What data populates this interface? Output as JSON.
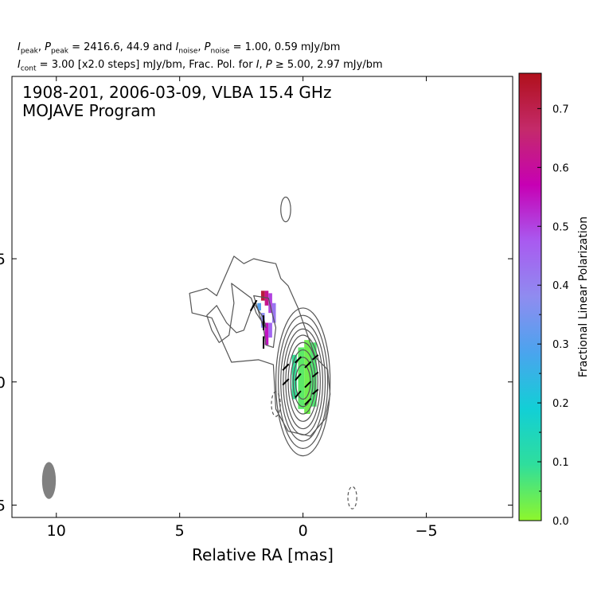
{
  "header": {
    "peak_values": "2416.6, 44.9",
    "noise_values": "1.00, 0.59 mJy/bm",
    "cont_value": "3.00 [x2.0 steps] mJy/bm, Frac. Pol. for",
    "pol_thresholds": "5.00, 2.97 mJy/bm",
    "sym_i": "I",
    "sym_p": "P",
    "sub_peak": "peak",
    "sub_noise": "noise",
    "sub_cont": "cont",
    "eq": "=",
    "and": "and",
    "comma": ",",
    "geq": "≥"
  },
  "chart_data": {
    "type": "contour",
    "title": "1908-201, 2006-03-09, VLBA 15.4 GHz",
    "subtitle": "MOJAVE Program",
    "xlabel": "Relative RA [mas]",
    "ylabel": "",
    "x_ticks": [
      10,
      5,
      0,
      -5
    ],
    "x_tick_labels": [
      "10",
      "5",
      "0",
      "−5"
    ],
    "y_ticks": [
      5,
      0,
      -5
    ],
    "y_tick_labels_visible": [
      "5",
      "0",
      "5"
    ],
    "xlim": [
      11.8,
      -8.5
    ],
    "ylim": [
      -5.5,
      12.4
    ],
    "colorbar": {
      "label": "Fractional Linear Polarization",
      "min": 0.0,
      "max": 0.76,
      "ticks": [
        0.0,
        0.1,
        0.2,
        0.3,
        0.4,
        0.5,
        0.6,
        0.7
      ],
      "tick_labels": [
        "0.0",
        "0.1",
        "0.2",
        "0.3",
        "0.4",
        "0.5",
        "0.6",
        "0.7"
      ],
      "colors": [
        "#8ef62c",
        "#2fde9c",
        "#12cfd6",
        "#4aa4ee",
        "#8f8cf0",
        "#a95af0",
        "#c700b4",
        "#c42a6a",
        "#b0101b"
      ]
    },
    "core": {
      "x": 0.0,
      "y": 0.0
    },
    "contour_levels_mJy": [
      3,
      6,
      12,
      24,
      48,
      96,
      192,
      384,
      768,
      1536
    ],
    "core_contours": [
      {
        "dx": 1.1,
        "dy": 3.0
      },
      {
        "dx": 1.0,
        "dy": 2.7
      },
      {
        "dx": 0.9,
        "dy": 2.4
      },
      {
        "dx": 0.8,
        "dy": 2.15
      },
      {
        "dx": 0.7,
        "dy": 1.9
      },
      {
        "dx": 0.6,
        "dy": 1.6
      },
      {
        "dx": 0.5,
        "dy": 1.3
      },
      {
        "dx": 0.4,
        "dy": 1.0
      },
      {
        "dx": 0.3,
        "dy": 0.7
      }
    ],
    "jet_outer_contour": [
      [
        1.6,
        4.9
      ],
      [
        1.1,
        4.8
      ],
      [
        0.9,
        4.2
      ],
      [
        0.6,
        3.9
      ],
      [
        0.2,
        3.0
      ],
      [
        -0.5,
        1.0
      ],
      [
        -1.0,
        0.5
      ],
      [
        -1.1,
        -0.5
      ],
      [
        -0.9,
        -1.5
      ],
      [
        -0.3,
        -2.2
      ],
      [
        0.6,
        -2.0
      ],
      [
        1.1,
        -1.1
      ],
      [
        1.2,
        0.7
      ],
      [
        1.8,
        0.9
      ],
      [
        2.9,
        0.8
      ],
      [
        3.7,
        2.6
      ],
      [
        4.5,
        2.8
      ],
      [
        4.6,
        3.6
      ],
      [
        3.9,
        3.8
      ],
      [
        3.5,
        3.5
      ],
      [
        2.8,
        5.1
      ],
      [
        2.4,
        4.8
      ],
      [
        2.0,
        5.0
      ]
    ],
    "jet_inner_contour": [
      [
        2.9,
        4.0
      ],
      [
        2.1,
        3.4
      ],
      [
        1.9,
        2.8
      ],
      [
        1.5,
        2.2
      ],
      [
        1.6,
        2.6
      ],
      [
        2.0,
        3.2
      ],
      [
        2.4,
        2.1
      ],
      [
        2.7,
        2.0
      ],
      [
        3.1,
        2.4
      ],
      [
        3.5,
        3.1
      ],
      [
        3.9,
        2.7
      ],
      [
        3.7,
        2.1
      ],
      [
        3.4,
        1.6
      ],
      [
        3.0,
        1.9
      ],
      [
        2.8,
        3.2
      ]
    ],
    "jet_contour_2": [
      [
        2.0,
        3.5
      ],
      [
        1.6,
        2.2
      ],
      [
        1.5,
        1.5
      ],
      [
        1.2,
        1.4
      ],
      [
        1.1,
        2.2
      ],
      [
        1.4,
        3.4
      ],
      [
        2.0,
        3.5
      ]
    ],
    "isolated_contours": [
      {
        "x": 0.7,
        "y": 7.0,
        "rx": 0.2,
        "ry": 0.5,
        "dashed": false
      },
      {
        "x": 1.1,
        "y": -0.9,
        "rx": 0.18,
        "ry": 0.5,
        "dashed": true
      },
      {
        "x": -2.0,
        "y": -4.7,
        "rx": 0.18,
        "ry": 0.45,
        "dashed": true
      }
    ],
    "beam": {
      "x": 10.3,
      "y": -4.0,
      "rx": 0.28,
      "ry": 0.75
    },
    "frac_pol_pixels": [
      {
        "x": 1.7,
        "y": 3.3,
        "w": 0.15,
        "h": 0.4,
        "fp": 0.72
      },
      {
        "x": 1.55,
        "y": 3.1,
        "w": 0.15,
        "h": 0.6,
        "fp": 0.62
      },
      {
        "x": 1.4,
        "y": 2.8,
        "w": 0.15,
        "h": 0.8,
        "fp": 0.5
      },
      {
        "x": 1.25,
        "y": 2.4,
        "w": 0.15,
        "h": 0.8,
        "fp": 0.42
      },
      {
        "x": 1.85,
        "y": 2.9,
        "w": 0.15,
        "h": 0.3,
        "fp": 0.3
      },
      {
        "x": 1.7,
        "y": 2.2,
        "w": 0.15,
        "h": 0.6,
        "fp": 0.38
      },
      {
        "x": 1.55,
        "y": 1.5,
        "w": 0.15,
        "h": 0.9,
        "fp": 0.55
      },
      {
        "x": 1.4,
        "y": 1.8,
        "w": 0.15,
        "h": 0.6,
        "fp": 0.45
      },
      {
        "x": 0.2,
        "y": -1.1,
        "w": 0.25,
        "h": 2.5,
        "fp": 0.05
      },
      {
        "x": -0.05,
        "y": -1.3,
        "w": 0.25,
        "h": 3.0,
        "fp": 0.03
      },
      {
        "x": -0.3,
        "y": -1.0,
        "w": 0.25,
        "h": 2.6,
        "fp": 0.06
      },
      {
        "x": 0.45,
        "y": -0.7,
        "w": 0.2,
        "h": 1.8,
        "fp": 0.09
      }
    ],
    "evpa_ticks": [
      {
        "x": 2.0,
        "y": 3.1,
        "len": 0.5,
        "ang": 60
      },
      {
        "x": 1.6,
        "y": 2.4,
        "len": 0.6,
        "ang": 90
      },
      {
        "x": 1.6,
        "y": 1.6,
        "len": 0.5,
        "ang": 90
      },
      {
        "x": 0.7,
        "y": 0.6,
        "len": 0.35,
        "ang": 45
      },
      {
        "x": 0.7,
        "y": 0.0,
        "len": 0.35,
        "ang": 45
      },
      {
        "x": 0.2,
        "y": 0.9,
        "len": 0.35,
        "ang": 45
      },
      {
        "x": 0.2,
        "y": 0.2,
        "len": 0.35,
        "ang": 50
      },
      {
        "x": 0.2,
        "y": -0.5,
        "len": 0.35,
        "ang": 50
      },
      {
        "x": -0.2,
        "y": 0.7,
        "len": 0.35,
        "ang": 45
      },
      {
        "x": -0.2,
        "y": -0.1,
        "len": 0.35,
        "ang": 45
      },
      {
        "x": -0.2,
        "y": -0.8,
        "len": 0.35,
        "ang": 45
      },
      {
        "x": -0.5,
        "y": 1.0,
        "len": 0.3,
        "ang": 40
      },
      {
        "x": -0.5,
        "y": 0.3,
        "len": 0.3,
        "ang": 40
      },
      {
        "x": -0.5,
        "y": -0.4,
        "len": 0.3,
        "ang": 40
      }
    ]
  }
}
